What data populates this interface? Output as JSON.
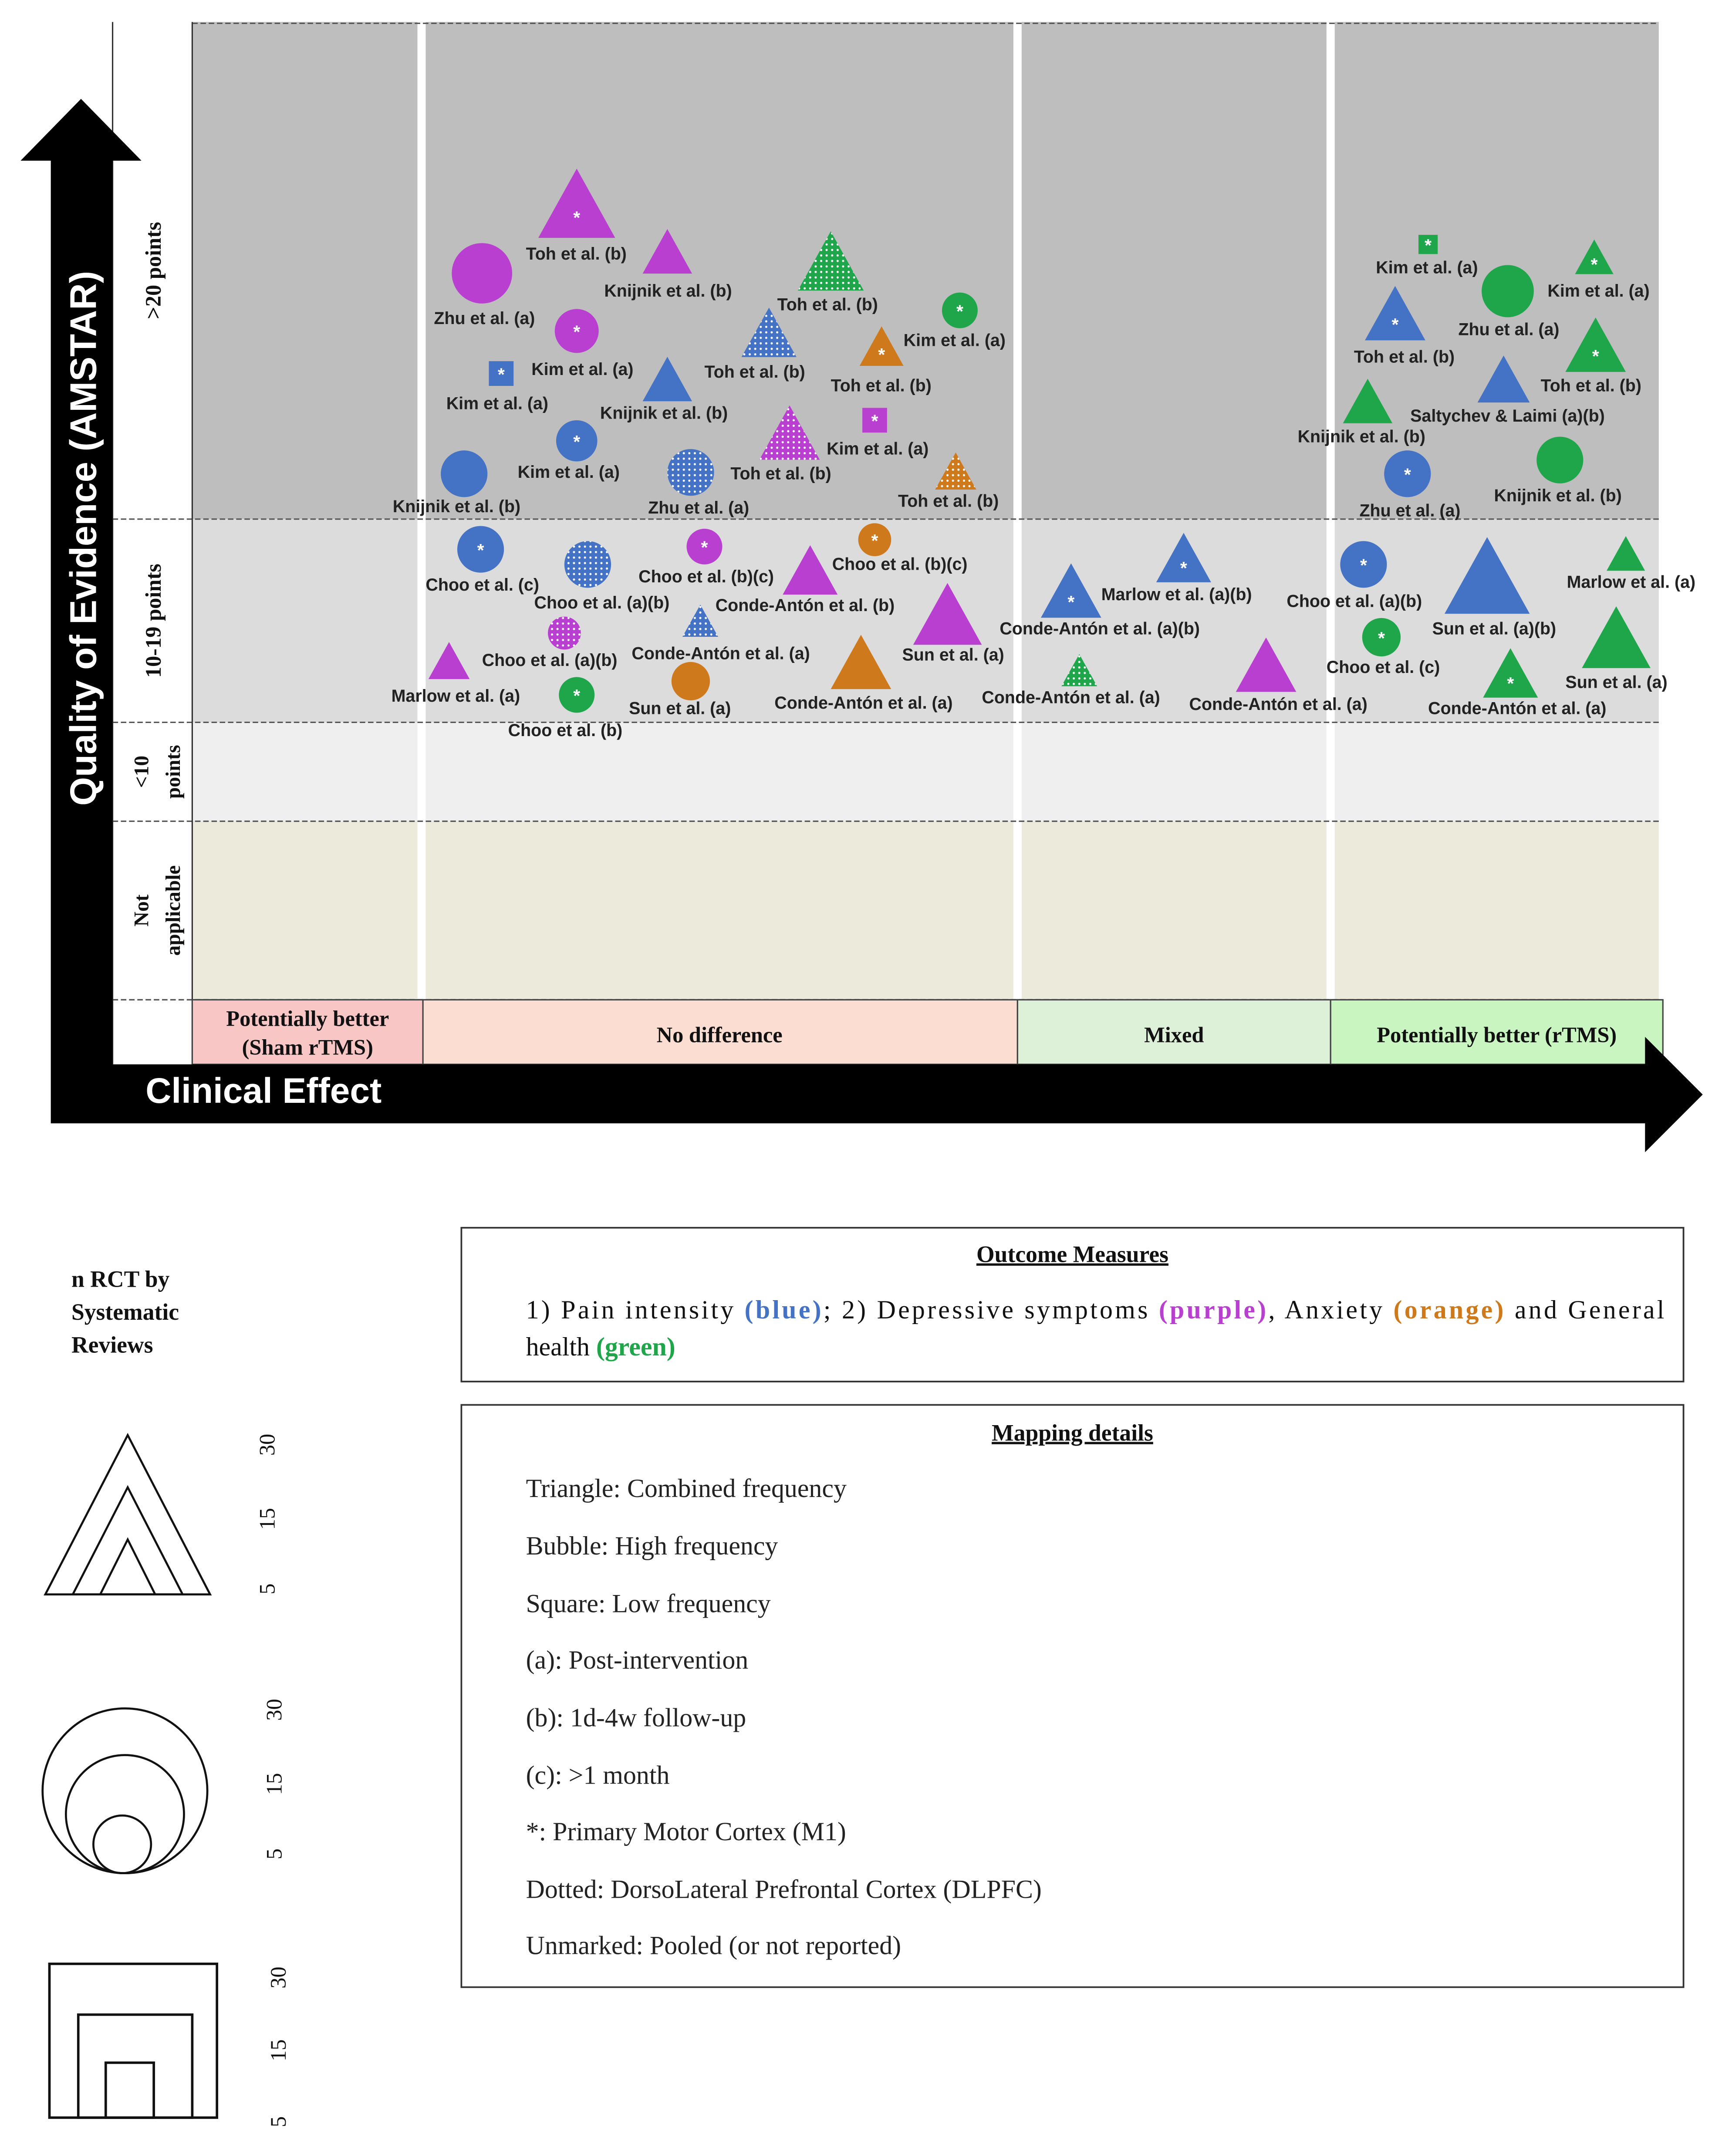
{
  "axes": {
    "y_title": "Quality of Evidence (AMSTAR)",
    "x_title": "Clinical Effect",
    "rows": [
      ">20 points",
      "10-19 points",
      "<10 points",
      "Not applicable"
    ],
    "columns": [
      "Potentially better (Sham rTMS)",
      "No difference",
      "Mixed",
      "Potentially better (rTMS)"
    ]
  },
  "colors": {
    "blue": "#4472C4",
    "purple": "#B93FD0",
    "orange": "#CE7A1C",
    "green": "#1FA64A",
    "row_top_bg": "#BEBEBE",
    "row_mid_bg": "#DCDCDC",
    "row_low_bg": "#EFEFEF",
    "row_na_bg": "#ECEADB",
    "col_sham": "#F9C6C6",
    "col_nodiff": "#FBDDD2",
    "col_mixed": "#DDF0D8",
    "col_rtms": "#C8F5C0"
  },
  "markers": [
    {
      "label": "Toh et al. (b)",
      "shape": "triangle",
      "color": "purple",
      "mark": "star"
    },
    {
      "label": "Knijnik et al. (b)",
      "shape": "triangle",
      "color": "purple",
      "mark": "none"
    },
    {
      "label": "Zhu et al. (a)",
      "shape": "bubble",
      "color": "purple",
      "mark": "none"
    },
    {
      "label": "Kim et al. (a)",
      "shape": "bubble",
      "color": "purple",
      "mark": "star"
    },
    {
      "label": "Kim et al. (a)",
      "shape": "square",
      "color": "blue",
      "mark": "star"
    },
    {
      "label": "Knijnik et al. (b)",
      "shape": "triangle",
      "color": "blue",
      "mark": "none"
    },
    {
      "label": "Kim et al. (a)",
      "shape": "bubble",
      "color": "blue",
      "mark": "star"
    },
    {
      "label": "Knijnik et al. (b)",
      "shape": "bubble",
      "color": "blue",
      "mark": "none"
    },
    {
      "label": "Zhu et al. (a)",
      "shape": "bubble",
      "color": "blue",
      "mark": "dotted"
    },
    {
      "label": "Toh et al. (b)",
      "shape": "triangle",
      "color": "green",
      "mark": "dotted"
    },
    {
      "label": "Toh et al. (b)",
      "shape": "triangle",
      "color": "blue",
      "mark": "dotted"
    },
    {
      "label": "Toh et al. (b)",
      "shape": "triangle",
      "color": "purple",
      "mark": "dotted"
    },
    {
      "label": "Kim et al. (a)",
      "shape": "bubble",
      "color": "green",
      "mark": "star"
    },
    {
      "label": "Toh et al. (b)",
      "shape": "triangle",
      "color": "orange",
      "mark": "star"
    },
    {
      "label": "Kim et al. (a)",
      "shape": "square",
      "color": "purple",
      "mark": "star"
    },
    {
      "label": "Toh et al. (b)",
      "shape": "triangle",
      "color": "orange",
      "mark": "dotted"
    },
    {
      "label": "Kim et al. (a)",
      "shape": "square",
      "color": "green",
      "mark": "star"
    },
    {
      "label": "Kim et al. (a)",
      "shape": "triangle",
      "color": "green",
      "mark": "star"
    },
    {
      "label": "Toh et al. (b)",
      "shape": "triangle",
      "color": "blue",
      "mark": "star"
    },
    {
      "label": "Zhu et al. (a)",
      "shape": "bubble",
      "color": "green",
      "mark": "none"
    },
    {
      "label": "Toh et al. (b)",
      "shape": "triangle",
      "color": "green",
      "mark": "star"
    },
    {
      "label": "Saltychev & Laimi (a)(b)",
      "shape": "triangle",
      "color": "blue",
      "mark": "none"
    },
    {
      "label": "Knijnik et al. (b)",
      "shape": "triangle",
      "color": "green",
      "mark": "none"
    },
    {
      "label": "Zhu et al. (a)",
      "shape": "bubble",
      "color": "blue",
      "mark": "star"
    },
    {
      "label": "Knijnik et al. (b)",
      "shape": "bubble",
      "color": "green",
      "mark": "none"
    },
    {
      "label": "Choo et al. (c)",
      "shape": "bubble",
      "color": "blue",
      "mark": "star"
    },
    {
      "label": "Choo et al. (a)(b)",
      "shape": "bubble",
      "color": "blue",
      "mark": "dotted"
    },
    {
      "label": "Choo et al. (b)(c)",
      "shape": "bubble",
      "color": "purple",
      "mark": "star"
    },
    {
      "label": "Choo et al. (b)(c)",
      "shape": "bubble",
      "color": "orange",
      "mark": "star"
    },
    {
      "label": "Conde-Antón et al. (b)",
      "shape": "triangle",
      "color": "purple",
      "mark": "none"
    },
    {
      "label": "Choo et al. (a)(b)",
      "shape": "bubble",
      "color": "purple",
      "mark": "dotted"
    },
    {
      "label": "Conde-Antón et al. (a)",
      "shape": "triangle",
      "color": "blue",
      "mark": "dotted"
    },
    {
      "label": "Sun et al. (a)",
      "shape": "triangle",
      "color": "purple",
      "mark": "none"
    },
    {
      "label": "Marlow et al. (a)",
      "shape": "triangle",
      "color": "purple",
      "mark": "none"
    },
    {
      "label": "Choo et al. (b)",
      "shape": "bubble",
      "color": "green",
      "mark": "star"
    },
    {
      "label": "Sun et al. (a)",
      "shape": "bubble",
      "color": "orange",
      "mark": "none"
    },
    {
      "label": "Conde-Antón et al. (a)",
      "shape": "triangle",
      "color": "orange",
      "mark": "none"
    },
    {
      "label": "Marlow et al. (a)(b)",
      "shape": "triangle",
      "color": "blue",
      "mark": "star"
    },
    {
      "label": "Conde-Antón et al. (a)(b)",
      "shape": "triangle",
      "color": "blue",
      "mark": "star"
    },
    {
      "label": "Conde-Antón et al. (a)",
      "shape": "triangle",
      "color": "green",
      "mark": "dotted"
    },
    {
      "label": "Conde-Antón et al. (a)",
      "shape": "triangle",
      "color": "purple",
      "mark": "none"
    },
    {
      "label": "Choo et al. (a)(b)",
      "shape": "bubble",
      "color": "blue",
      "mark": "star"
    },
    {
      "label": "Sun et al. (a)(b)",
      "shape": "triangle",
      "color": "blue",
      "mark": "none"
    },
    {
      "label": "Marlow et al. (a)",
      "shape": "triangle",
      "color": "green",
      "mark": "none"
    },
    {
      "label": "Choo et al. (c)",
      "shape": "bubble",
      "color": "green",
      "mark": "star"
    },
    {
      "label": "Sun et al. (a)",
      "shape": "triangle",
      "color": "green",
      "mark": "none"
    },
    {
      "label": "Conde-Antón et al. (a)",
      "shape": "triangle",
      "color": "green",
      "mark": "star"
    }
  ],
  "legend": {
    "size_title": "n RCT by Systematic Reviews",
    "size_ticks": [
      "30",
      "15",
      "5"
    ]
  },
  "outcome_box": {
    "title": "Outcome Measures",
    "t1": "1) Pain intensity ",
    "blue": "(blue)",
    "t2": "; 2) Depressive symptoms ",
    "purple": "(purple)",
    "t3": ", Anxiety ",
    "orange": "(orange)",
    "t4": " and General",
    "t5": "health ",
    "green": "(green)"
  },
  "mapping_box": {
    "title": "Mapping details",
    "items": [
      "Triangle: Combined frequency",
      "Bubble: High frequency",
      "Square: Low frequency",
      "(a): Post-intervention",
      "(b): 1d-4w follow-up",
      "(c): >1 month",
      "*: Primary Motor Cortex (M1)",
      "Dotted: DorsoLateral Prefrontal Cortex (DLPFC)",
      "Unmarked: Pooled (or not reported)"
    ]
  }
}
